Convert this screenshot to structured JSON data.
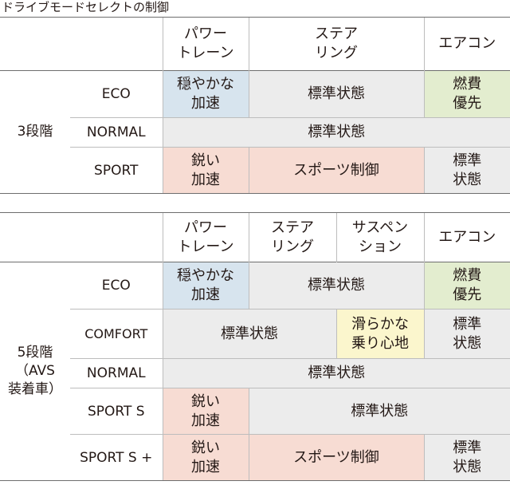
{
  "title": "ドライブモードセレクトの制御",
  "table1": {
    "headers": {
      "powertrain": [
        "パワー",
        "トレーン"
      ],
      "steering": [
        "ステア",
        "リング"
      ],
      "aircon": "エアコン"
    },
    "stage": "3段階",
    "rows": {
      "eco": {
        "label": "ECO",
        "powertrain": [
          "穏やかな",
          "加速"
        ],
        "steering": "標準状態",
        "aircon": [
          "燃費",
          "優先"
        ]
      },
      "normal": {
        "label": "NORMAL",
        "all": "標準状態"
      },
      "sport": {
        "label": "SPORT",
        "powertrain": [
          "鋭い",
          "加速"
        ],
        "steering": "スポーツ制御",
        "aircon": [
          "標準",
          "状態"
        ]
      }
    }
  },
  "table2": {
    "headers": {
      "powertrain": [
        "パワー",
        "トレーン"
      ],
      "steering": [
        "ステア",
        "リング"
      ],
      "suspension": [
        "サスペン",
        "ション"
      ],
      "aircon": "エアコン"
    },
    "stage": [
      "5段階",
      "（AVS",
      "装着車）"
    ],
    "rows": {
      "eco": {
        "label": "ECO",
        "powertrain": [
          "穏やかな",
          "加速"
        ],
        "middle": "標準状態",
        "aircon": [
          "燃費",
          "優先"
        ]
      },
      "comfort": {
        "label": "COMFORT",
        "left": "標準状態",
        "suspension": [
          "滑らかな",
          "乗り心地"
        ],
        "aircon": [
          "標準",
          "状態"
        ]
      },
      "normal": {
        "label": "NORMAL",
        "all": "標準状態"
      },
      "sports": {
        "label": "SPORT S",
        "powertrain": [
          "鋭い",
          "加速"
        ],
        "rest": "標準状態"
      },
      "sportsplus": {
        "label": "SPORT S +",
        "powertrain": [
          "鋭い",
          "加速"
        ],
        "middle": "スポーツ制御",
        "aircon": [
          "標準",
          "状態"
        ]
      }
    }
  },
  "colors": {
    "mild_accel": "#d7e4ee",
    "standard": "#ececec",
    "economy": "#e3edcf",
    "sport": "#f7dcd3",
    "smooth_ride": "#fbf6cd"
  }
}
